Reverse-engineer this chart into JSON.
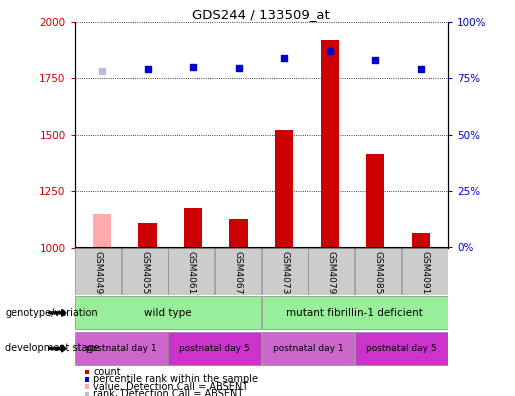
{
  "title": "GDS244 / 133509_at",
  "samples": [
    "GSM4049",
    "GSM4055",
    "GSM4061",
    "GSM4067",
    "GSM4073",
    "GSM4079",
    "GSM4085",
    "GSM4091"
  ],
  "count_values": [
    1150,
    1110,
    1175,
    1125,
    1520,
    1920,
    1415,
    1065
  ],
  "count_absent": [
    true,
    false,
    false,
    false,
    false,
    false,
    false,
    false
  ],
  "rank_values": [
    1780,
    1790,
    1800,
    1795,
    1840,
    1870,
    1830,
    1790
  ],
  "rank_absent": [
    true,
    false,
    false,
    false,
    false,
    false,
    false,
    false
  ],
  "ylim_left": [
    1000,
    2000
  ],
  "ylim_right": [
    0,
    100
  ],
  "yticks_left": [
    1000,
    1250,
    1500,
    1750,
    2000
  ],
  "yticks_right": [
    0,
    25,
    50,
    75,
    100
  ],
  "bar_color_normal": "#cc0000",
  "bar_color_absent": "#ffaaaa",
  "rank_color_normal": "#0000cc",
  "rank_color_absent": "#bbbbdd",
  "bar_width": 0.4,
  "geno_group1_label": "wild type",
  "geno_group2_label": "mutant fibrillin-1 deficient",
  "geno_color": "#99ee99",
  "dev_color1": "#cc66cc",
  "dev_color2": "#cc33cc",
  "dev_label1": "postnatal day 1",
  "dev_label2": "postnatal day 5",
  "legend_items": [
    {
      "label": "count",
      "color": "#cc0000"
    },
    {
      "label": "percentile rank within the sample",
      "color": "#0000cc"
    },
    {
      "label": "value, Detection Call = ABSENT",
      "color": "#ffaaaa"
    },
    {
      "label": "rank, Detection Call = ABSENT",
      "color": "#bbbbdd"
    }
  ],
  "left_tick_color": "#cc0000",
  "right_tick_color": "#0000cc",
  "background_color": "#ffffff",
  "grid_color": "#000000",
  "sample_box_color": "#cccccc",
  "border_color": "#888888"
}
